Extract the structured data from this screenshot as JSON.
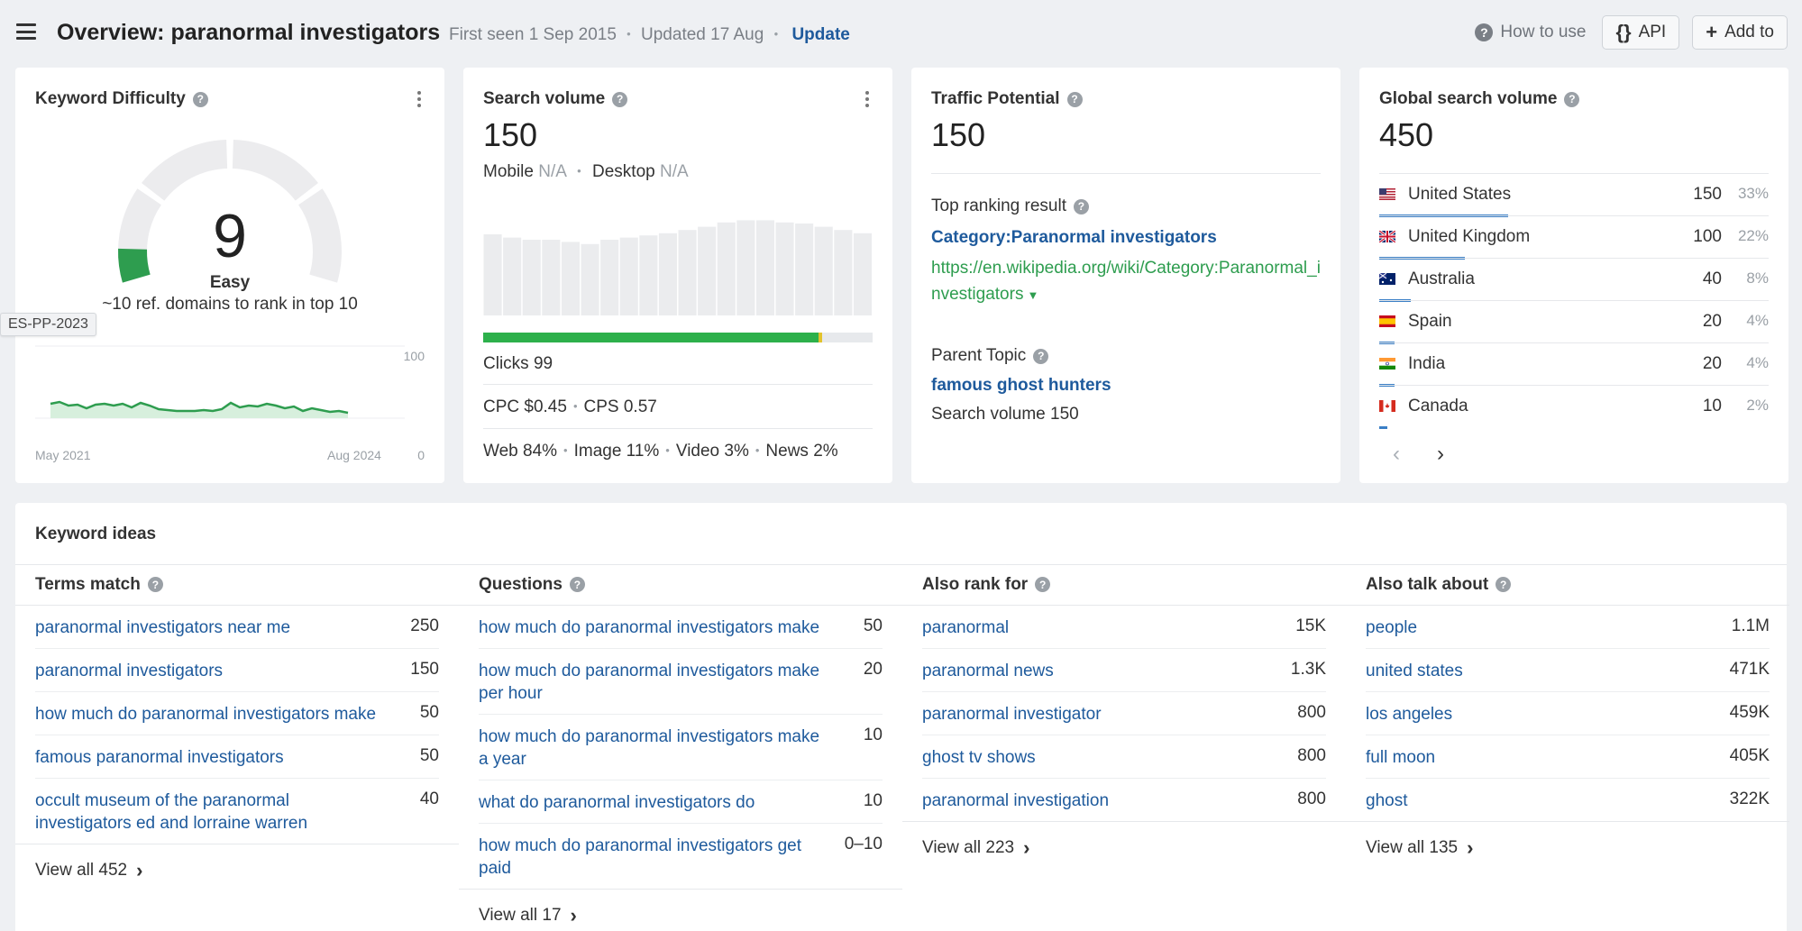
{
  "header": {
    "title": "Overview: paranormal investigators",
    "first_seen": "First seen 1 Sep 2015",
    "updated": "Updated 17 Aug",
    "update_link": "Update",
    "how_to_use": "How to use",
    "api_label": "API",
    "api_icon": "{}",
    "add_to_label": "Add to"
  },
  "kd": {
    "title": "Keyword Difficulty",
    "value": "9",
    "label": "Easy",
    "sub": "~10 ref. domains to rank in top 10",
    "tag": "ES-PP-2023",
    "chart": {
      "y_max": "100",
      "y_min": "0",
      "x_start": "May 2021",
      "x_end": "Aug 2024"
    }
  },
  "search_volume": {
    "title": "Search volume",
    "value": "150",
    "mobile_label": "Mobile",
    "mobile_value": "N/A",
    "desktop_label": "Desktop",
    "desktop_value": "N/A",
    "clicks": "Clicks 99",
    "clicks_ratio_green": 0.86,
    "clicks_ratio_yellow": 0.01,
    "cpc": "CPC $0.45",
    "cps": "CPS 0.57",
    "web": "Web 84%",
    "image": "Image 11%",
    "video": "Video 3%",
    "news": "News 2%",
    "history": [
      0.75,
      0.72,
      0.7,
      0.7,
      0.68,
      0.66,
      0.7,
      0.72,
      0.74,
      0.76,
      0.79,
      0.82,
      0.86,
      0.88,
      0.88,
      0.86,
      0.85,
      0.82,
      0.79,
      0.76
    ]
  },
  "traffic_potential": {
    "title": "Traffic Potential",
    "value": "150",
    "top_ranking_label": "Top ranking result",
    "top_ranking_title": "Category:Paranormal investigators",
    "top_ranking_url": "https://en.wikipedia.org/wiki/Category:Paranormal_investigators",
    "parent_topic_label": "Parent Topic",
    "parent_topic": "famous ghost hunters",
    "parent_volume": "Search volume 150"
  },
  "global": {
    "title": "Global search volume",
    "value": "450",
    "countries": [
      {
        "name": "United States",
        "value": "150",
        "pct": "33%",
        "share": 0.33,
        "flag": "us"
      },
      {
        "name": "United Kingdom",
        "value": "100",
        "pct": "22%",
        "share": 0.22,
        "flag": "gb"
      },
      {
        "name": "Australia",
        "value": "40",
        "pct": "8%",
        "share": 0.08,
        "flag": "au"
      },
      {
        "name": "Spain",
        "value": "20",
        "pct": "4%",
        "share": 0.04,
        "flag": "es"
      },
      {
        "name": "India",
        "value": "20",
        "pct": "4%",
        "share": 0.04,
        "flag": "in"
      },
      {
        "name": "Canada",
        "value": "10",
        "pct": "2%",
        "share": 0.02,
        "flag": "ca"
      }
    ],
    "prev_icon": "‹",
    "next_icon": "›"
  },
  "ideas": {
    "title": "Keyword ideas",
    "columns": [
      {
        "title": "Terms match",
        "rows": [
          {
            "kw": "paranormal investigators near me",
            "vol": "250"
          },
          {
            "kw": "paranormal investigators",
            "vol": "150"
          },
          {
            "kw": "how much do paranormal investigators make",
            "vol": "50"
          },
          {
            "kw": "famous paranormal investigators",
            "vol": "50"
          },
          {
            "kw": "occult museum of the paranormal investigators ed and lorraine warren",
            "vol": "40"
          }
        ],
        "view_all": "View all 452"
      },
      {
        "title": "Questions",
        "rows": [
          {
            "kw": "how much do paranormal investigators make",
            "vol": "50"
          },
          {
            "kw": "how much do paranormal investigators make per hour",
            "vol": "20"
          },
          {
            "kw": "how much do paranormal investigators make a year",
            "vol": "10"
          },
          {
            "kw": "what do paranormal investigators do",
            "vol": "10"
          },
          {
            "kw": "how much do paranormal investigators get paid",
            "vol": "0–10"
          }
        ],
        "view_all": "View all 17"
      },
      {
        "title": "Also rank for",
        "rows": [
          {
            "kw": "paranormal",
            "vol": "15K"
          },
          {
            "kw": "paranormal news",
            "vol": "1.3K"
          },
          {
            "kw": "paranormal investigator",
            "vol": "800"
          },
          {
            "kw": "ghost tv shows",
            "vol": "800"
          },
          {
            "kw": "paranormal investigation",
            "vol": "800"
          }
        ],
        "view_all": "View all 223"
      },
      {
        "title": "Also talk about",
        "rows": [
          {
            "kw": "people",
            "vol": "1.1M"
          },
          {
            "kw": "united states",
            "vol": "471K"
          },
          {
            "kw": "los angeles",
            "vol": "459K"
          },
          {
            "kw": "full moon",
            "vol": "405K"
          },
          {
            "kw": "ghost",
            "vol": "322K"
          }
        ],
        "view_all": "View all 135"
      }
    ]
  }
}
